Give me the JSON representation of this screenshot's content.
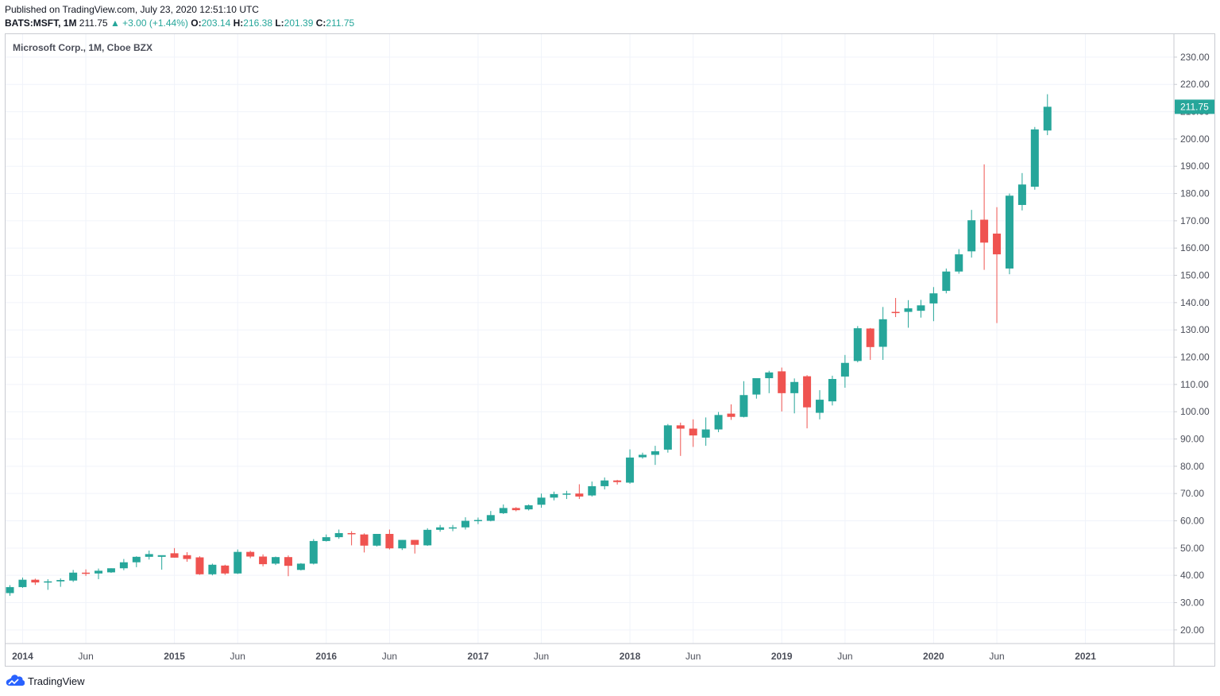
{
  "header": {
    "published": "Published on TradingView.com, July 23, 2020 12:51:10 UTC",
    "symbol": "BATS:MSFT, 1M",
    "last": "211.75",
    "change": "▲ +3.00 (+1.44%)",
    "open_label": "O:",
    "open": "203.14",
    "high_label": "H:",
    "high": "216.38",
    "low_label": "L:",
    "low": "201.39",
    "close_label": "C:",
    "close": "211.75"
  },
  "footer": {
    "brand": "TradingView"
  },
  "colors": {
    "up": "#26a69a",
    "down": "#ef5350",
    "grid": "#f0f3fa",
    "axis": "#787b86"
  },
  "chart_data": {
    "type": "candlestick",
    "title": "Microsoft Corp., 1M, Cboe BZX",
    "ylim": [
      15,
      238
    ],
    "yticks": [
      20,
      30,
      40,
      50,
      60,
      70,
      80,
      90,
      100,
      110,
      120,
      130,
      140,
      150,
      160,
      170,
      180,
      190,
      200,
      210,
      220,
      230
    ],
    "x_tick_labels": [
      {
        "label": "2014",
        "idx": 1,
        "bold": true
      },
      {
        "label": "Jun",
        "idx": 6,
        "bold": false
      },
      {
        "label": "2015",
        "idx": 13,
        "bold": true
      },
      {
        "label": "Jun",
        "idx": 18,
        "bold": false
      },
      {
        "label": "2016",
        "idx": 25,
        "bold": true
      },
      {
        "label": "Jun",
        "idx": 30,
        "bold": false
      },
      {
        "label": "2017",
        "idx": 37,
        "bold": true
      },
      {
        "label": "Jun",
        "idx": 42,
        "bold": false
      },
      {
        "label": "2018",
        "idx": 49,
        "bold": true
      },
      {
        "label": "Jun",
        "idx": 54,
        "bold": false
      },
      {
        "label": "2019",
        "idx": 61,
        "bold": true
      },
      {
        "label": "Jun",
        "idx": 66,
        "bold": false
      },
      {
        "label": "2020",
        "idx": 73,
        "bold": true
      },
      {
        "label": "Jun",
        "idx": 78,
        "bold": false
      },
      {
        "label": "2021",
        "idx": 85,
        "bold": true
      }
    ],
    "last_price_label": "211.75",
    "candles": [
      {
        "o": 33.5,
        "h": 36.4,
        "l": 32.5,
        "c": 35.7
      },
      {
        "o": 35.7,
        "h": 39.2,
        "l": 35.4,
        "c": 38.4
      },
      {
        "o": 38.4,
        "h": 38.8,
        "l": 36.5,
        "c": 37.4
      },
      {
        "o": 37.4,
        "h": 38.6,
        "l": 34.7,
        "c": 37.8
      },
      {
        "o": 37.8,
        "h": 38.9,
        "l": 35.8,
        "c": 38.3
      },
      {
        "o": 38.1,
        "h": 42.0,
        "l": 37.6,
        "c": 41.0
      },
      {
        "o": 41.0,
        "h": 42.2,
        "l": 39.8,
        "c": 40.7
      },
      {
        "o": 40.7,
        "h": 42.5,
        "l": 38.6,
        "c": 41.7
      },
      {
        "o": 41.1,
        "h": 42.6,
        "l": 40.9,
        "c": 42.6
      },
      {
        "o": 42.6,
        "h": 46.0,
        "l": 41.9,
        "c": 44.8
      },
      {
        "o": 44.8,
        "h": 47.0,
        "l": 43.0,
        "c": 46.8
      },
      {
        "o": 46.8,
        "h": 49.1,
        "l": 45.8,
        "c": 47.8
      },
      {
        "o": 46.8,
        "h": 47.3,
        "l": 42.1,
        "c": 47.4
      },
      {
        "o": 48.1,
        "h": 50.0,
        "l": 46.5,
        "c": 46.5
      },
      {
        "o": 47.4,
        "h": 48.5,
        "l": 45.0,
        "c": 46.0
      },
      {
        "o": 46.6,
        "h": 47.0,
        "l": 40.2,
        "c": 40.4
      },
      {
        "o": 40.4,
        "h": 44.3,
        "l": 40.0,
        "c": 43.9
      },
      {
        "o": 43.6,
        "h": 43.9,
        "l": 40.2,
        "c": 40.7
      },
      {
        "o": 40.7,
        "h": 49.5,
        "l": 40.5,
        "c": 48.6
      },
      {
        "o": 48.6,
        "h": 49.0,
        "l": 46.3,
        "c": 46.9
      },
      {
        "o": 46.9,
        "h": 47.7,
        "l": 43.3,
        "c": 44.1
      },
      {
        "o": 44.3,
        "h": 46.9,
        "l": 43.8,
        "c": 46.7
      },
      {
        "o": 46.7,
        "h": 47.3,
        "l": 39.7,
        "c": 43.5
      },
      {
        "o": 42.0,
        "h": 44.5,
        "l": 41.8,
        "c": 44.3
      },
      {
        "o": 44.3,
        "h": 53.3,
        "l": 44.0,
        "c": 52.6
      },
      {
        "o": 52.6,
        "h": 55.0,
        "l": 52.4,
        "c": 54.0
      },
      {
        "o": 54.0,
        "h": 56.8,
        "l": 53.4,
        "c": 55.5
      },
      {
        "o": 55.5,
        "h": 56.2,
        "l": 51.0,
        "c": 55.2
      },
      {
        "o": 55.0,
        "h": 55.4,
        "l": 48.4,
        "c": 50.9
      },
      {
        "o": 50.9,
        "h": 55.2,
        "l": 50.6,
        "c": 55.2
      },
      {
        "o": 55.2,
        "h": 56.8,
        "l": 49.5,
        "c": 49.9
      },
      {
        "o": 49.9,
        "h": 53.0,
        "l": 49.3,
        "c": 53.0
      },
      {
        "o": 53.0,
        "h": 53.0,
        "l": 48.0,
        "c": 51.2
      },
      {
        "o": 51.0,
        "h": 57.3,
        "l": 50.8,
        "c": 56.7
      },
      {
        "o": 56.7,
        "h": 58.5,
        "l": 56.0,
        "c": 57.6
      },
      {
        "o": 57.5,
        "h": 58.5,
        "l": 56.2,
        "c": 57.6
      },
      {
        "o": 57.6,
        "h": 61.3,
        "l": 56.8,
        "c": 60.0
      },
      {
        "o": 60.0,
        "h": 61.2,
        "l": 58.8,
        "c": 60.3
      },
      {
        "o": 60.0,
        "h": 63.6,
        "l": 59.8,
        "c": 62.1
      },
      {
        "o": 62.8,
        "h": 66.0,
        "l": 62.5,
        "c": 64.7
      },
      {
        "o": 64.7,
        "h": 65.0,
        "l": 63.5,
        "c": 63.9
      },
      {
        "o": 64.2,
        "h": 66.0,
        "l": 63.8,
        "c": 65.7
      },
      {
        "o": 65.9,
        "h": 70.0,
        "l": 64.8,
        "c": 68.5
      },
      {
        "o": 68.5,
        "h": 70.7,
        "l": 67.5,
        "c": 69.8
      },
      {
        "o": 69.8,
        "h": 71.0,
        "l": 68.0,
        "c": 70.0
      },
      {
        "o": 70.0,
        "h": 73.4,
        "l": 68.0,
        "c": 68.9
      },
      {
        "o": 69.3,
        "h": 74.4,
        "l": 68.9,
        "c": 72.7
      },
      {
        "o": 72.7,
        "h": 75.9,
        "l": 71.5,
        "c": 74.8
      },
      {
        "o": 74.8,
        "h": 75.0,
        "l": 73.3,
        "c": 74.2
      },
      {
        "o": 74.0,
        "h": 86.2,
        "l": 73.6,
        "c": 83.2
      },
      {
        "o": 83.3,
        "h": 85.0,
        "l": 82.8,
        "c": 84.2
      },
      {
        "o": 84.2,
        "h": 87.5,
        "l": 80.5,
        "c": 85.5
      },
      {
        "o": 86.1,
        "h": 95.5,
        "l": 85.0,
        "c": 95.0
      },
      {
        "o": 95.0,
        "h": 96.0,
        "l": 83.8,
        "c": 93.8
      },
      {
        "o": 93.8,
        "h": 97.2,
        "l": 87.1,
        "c": 91.3
      },
      {
        "o": 90.5,
        "h": 97.9,
        "l": 87.5,
        "c": 93.5
      },
      {
        "o": 93.5,
        "h": 99.9,
        "l": 92.5,
        "c": 98.8
      },
      {
        "o": 99.3,
        "h": 102.7,
        "l": 97.0,
        "c": 98.1
      },
      {
        "o": 98.1,
        "h": 111.2,
        "l": 97.9,
        "c": 106.1
      },
      {
        "o": 106.3,
        "h": 112.0,
        "l": 104.8,
        "c": 112.3
      },
      {
        "o": 112.3,
        "h": 115.0,
        "l": 106.8,
        "c": 114.4
      },
      {
        "o": 114.8,
        "h": 116.2,
        "l": 100.1,
        "c": 106.8
      },
      {
        "o": 106.8,
        "h": 112.2,
        "l": 99.4,
        "c": 110.9
      },
      {
        "o": 113.0,
        "h": 113.4,
        "l": 93.9,
        "c": 101.6
      },
      {
        "o": 99.6,
        "h": 107.9,
        "l": 97.2,
        "c": 104.4
      },
      {
        "o": 103.8,
        "h": 113.2,
        "l": 102.3,
        "c": 112.0
      },
      {
        "o": 112.9,
        "h": 120.8,
        "l": 108.8,
        "c": 117.9
      },
      {
        "o": 118.6,
        "h": 131.4,
        "l": 118.1,
        "c": 130.6
      },
      {
        "o": 130.5,
        "h": 130.7,
        "l": 119.0,
        "c": 123.7
      },
      {
        "o": 123.8,
        "h": 138.4,
        "l": 119.0,
        "c": 133.9
      },
      {
        "o": 136.6,
        "h": 141.7,
        "l": 134.7,
        "c": 136.3
      },
      {
        "o": 136.6,
        "h": 140.9,
        "l": 130.8,
        "c": 137.9
      },
      {
        "o": 137.0,
        "h": 141.0,
        "l": 134.5,
        "c": 139.0
      },
      {
        "o": 139.7,
        "h": 145.7,
        "l": 133.2,
        "c": 143.4
      },
      {
        "o": 144.3,
        "h": 152.5,
        "l": 143.4,
        "c": 151.4
      },
      {
        "o": 151.4,
        "h": 159.6,
        "l": 150.6,
        "c": 157.7
      },
      {
        "o": 158.8,
        "h": 174.0,
        "l": 156.5,
        "c": 170.2
      },
      {
        "o": 170.4,
        "h": 190.7,
        "l": 152.0,
        "c": 162.0
      },
      {
        "o": 165.3,
        "h": 175.0,
        "l": 132.5,
        "c": 157.7
      },
      {
        "o": 152.5,
        "h": 180.0,
        "l": 150.4,
        "c": 179.2
      },
      {
        "o": 175.8,
        "h": 187.5,
        "l": 173.8,
        "c": 183.3
      },
      {
        "o": 182.5,
        "h": 204.4,
        "l": 181.4,
        "c": 203.5
      },
      {
        "o": 203.1,
        "h": 216.4,
        "l": 201.4,
        "c": 211.8
      }
    ]
  }
}
